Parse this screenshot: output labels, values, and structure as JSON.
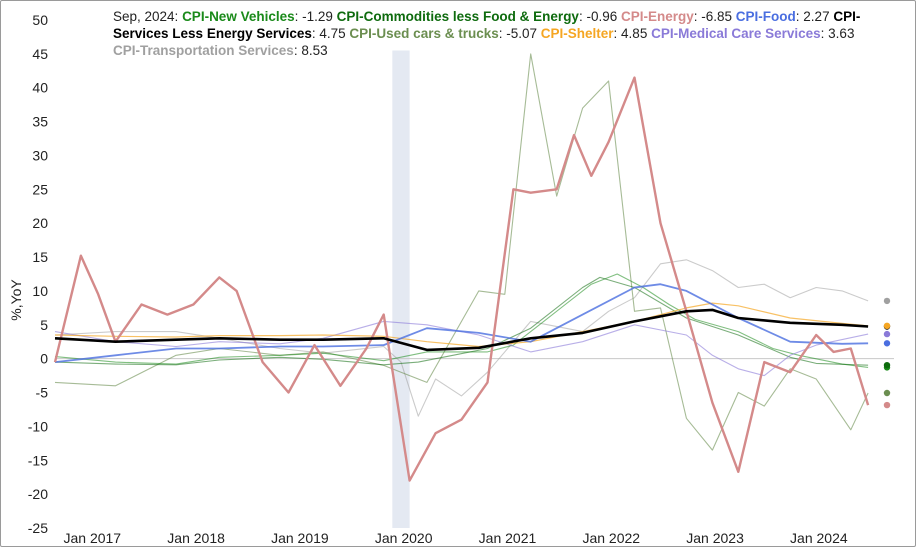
{
  "chart_data": {
    "type": "line",
    "ylabel": "%,YoY",
    "ylim": [
      -25,
      50
    ],
    "yticks": [
      -25,
      -20,
      -15,
      -10,
      -5,
      0,
      5,
      10,
      15,
      20,
      25,
      30,
      35,
      40,
      45,
      50
    ],
    "xlim": [
      "2016-11",
      "2024-12"
    ],
    "xticks": [
      {
        "label": "Jan 2017",
        "date": "2017-01"
      },
      {
        "label": "Jan 2018",
        "date": "2018-01"
      },
      {
        "label": "Jan 2019",
        "date": "2019-01"
      },
      {
        "label": "Jan 2020",
        "date": "2020-01"
      },
      {
        "label": "Jan 2021",
        "date": "2021-01"
      },
      {
        "label": "Jan 2022",
        "date": "2022-01"
      },
      {
        "label": "Jan 2023",
        "date": "2023-01"
      },
      {
        "label": "Jan 2024",
        "date": "2024-01"
      }
    ],
    "recession_band": [
      "2020-02",
      "2020-04"
    ],
    "legend": {
      "date": "Sep, 2024",
      "position": "top"
    },
    "series": [
      {
        "name": "CPI-New Vehicles",
        "color": "#1a8a1a",
        "last": "-1.29",
        "points": [
          [
            "2016-11",
            0.3
          ],
          [
            "2017-06",
            -0.5
          ],
          [
            "2018-01",
            -0.8
          ],
          [
            "2018-06",
            0.2
          ],
          [
            "2019-01",
            0.5
          ],
          [
            "2019-06",
            0.8
          ],
          [
            "2020-01",
            -0.3
          ],
          [
            "2020-06",
            1.0
          ],
          [
            "2021-01",
            1.0
          ],
          [
            "2021-04",
            2.0
          ],
          [
            "2021-07",
            5.0
          ],
          [
            "2021-10",
            8.0
          ],
          [
            "2022-01",
            11.0
          ],
          [
            "2022-04",
            12.5
          ],
          [
            "2022-07",
            10.5
          ],
          [
            "2022-10",
            8.0
          ],
          [
            "2023-01",
            5.8
          ],
          [
            "2023-06",
            4.0
          ],
          [
            "2023-10",
            1.5
          ],
          [
            "2024-01",
            0.5
          ],
          [
            "2024-06",
            -0.8
          ],
          [
            "2024-09",
            -1.29
          ]
        ]
      },
      {
        "name": "CPI-Commodities less Food & Energy",
        "color": "#0e6b0e",
        "last": "-0.96",
        "points": [
          [
            "2016-11",
            -0.5
          ],
          [
            "2017-06",
            -0.8
          ],
          [
            "2018-01",
            -0.9
          ],
          [
            "2018-06",
            -0.2
          ],
          [
            "2019-01",
            0.2
          ],
          [
            "2019-06",
            -0.1
          ],
          [
            "2020-01",
            -0.9
          ],
          [
            "2020-05",
            -0.5
          ],
          [
            "2020-09",
            0.5
          ],
          [
            "2021-01",
            1.5
          ],
          [
            "2021-06",
            4.5
          ],
          [
            "2021-12",
            10.5
          ],
          [
            "2022-02",
            12.0
          ],
          [
            "2022-06",
            10.5
          ],
          [
            "2022-12",
            6.0
          ],
          [
            "2023-06",
            3.5
          ],
          [
            "2023-12",
            0.2
          ],
          [
            "2024-03",
            -0.7
          ],
          [
            "2024-09",
            -0.96
          ]
        ]
      },
      {
        "name": "CPI-Energy",
        "color": "#d48a8a",
        "last": "-6.85",
        "points": [
          [
            "2016-11",
            -0.5
          ],
          [
            "2017-02",
            15.2
          ],
          [
            "2017-04",
            9.5
          ],
          [
            "2017-06",
            2.5
          ],
          [
            "2017-09",
            8.0
          ],
          [
            "2017-12",
            6.5
          ],
          [
            "2018-03",
            8.0
          ],
          [
            "2018-06",
            12.0
          ],
          [
            "2018-08",
            10.0
          ],
          [
            "2018-11",
            -0.5
          ],
          [
            "2019-02",
            -5.0
          ],
          [
            "2019-05",
            2.0
          ],
          [
            "2019-08",
            -4.0
          ],
          [
            "2019-11",
            1.5
          ],
          [
            "2020-01",
            6.5
          ],
          [
            "2020-04",
            -18.0
          ],
          [
            "2020-07",
            -11.0
          ],
          [
            "2020-10",
            -9.0
          ],
          [
            "2021-01",
            -3.5
          ],
          [
            "2021-04",
            25.0
          ],
          [
            "2021-06",
            24.5
          ],
          [
            "2021-09",
            25.0
          ],
          [
            "2021-11",
            33.0
          ],
          [
            "2022-01",
            27.0
          ],
          [
            "2022-03",
            32.0
          ],
          [
            "2022-06",
            41.5
          ],
          [
            "2022-09",
            20.0
          ],
          [
            "2022-12",
            7.0
          ],
          [
            "2023-03",
            -6.5
          ],
          [
            "2023-06",
            -16.7
          ],
          [
            "2023-09",
            -0.5
          ],
          [
            "2023-12",
            -2.0
          ],
          [
            "2024-03",
            3.5
          ],
          [
            "2024-05",
            1.0
          ],
          [
            "2024-07",
            1.5
          ],
          [
            "2024-09",
            -6.85
          ]
        ]
      },
      {
        "name": "CPI-Food",
        "color": "#4a6ee0",
        "last": "2.27",
        "points": [
          [
            "2016-11",
            -0.5
          ],
          [
            "2017-06",
            0.5
          ],
          [
            "2018-01",
            1.5
          ],
          [
            "2018-06",
            1.5
          ],
          [
            "2019-01",
            1.8
          ],
          [
            "2019-06",
            1.8
          ],
          [
            "2020-01",
            2.0
          ],
          [
            "2020-06",
            4.5
          ],
          [
            "2020-12",
            3.8
          ],
          [
            "2021-06",
            2.5
          ],
          [
            "2021-12",
            6.5
          ],
          [
            "2022-06",
            10.5
          ],
          [
            "2022-09",
            11.0
          ],
          [
            "2022-12",
            10.0
          ],
          [
            "2023-06",
            6.0
          ],
          [
            "2023-12",
            2.5
          ],
          [
            "2024-06",
            2.2
          ],
          [
            "2024-09",
            2.27
          ]
        ]
      },
      {
        "name": "CPI-Services Less Energy Services",
        "color": "#000000",
        "last": "4.75",
        "points": [
          [
            "2016-11",
            3.0
          ],
          [
            "2017-06",
            2.5
          ],
          [
            "2018-01",
            2.8
          ],
          [
            "2018-06",
            3.0
          ],
          [
            "2019-01",
            2.8
          ],
          [
            "2019-06",
            2.8
          ],
          [
            "2020-01",
            3.0
          ],
          [
            "2020-06",
            1.3
          ],
          [
            "2020-12",
            1.6
          ],
          [
            "2021-06",
            3.0
          ],
          [
            "2021-12",
            3.8
          ],
          [
            "2022-06",
            5.5
          ],
          [
            "2022-12",
            7.0
          ],
          [
            "2023-03",
            7.2
          ],
          [
            "2023-06",
            6.0
          ],
          [
            "2023-12",
            5.3
          ],
          [
            "2024-06",
            5.0
          ],
          [
            "2024-09",
            4.75
          ]
        ]
      },
      {
        "name": "CPI-Used cars & trucks",
        "color": "#6b8e50",
        "last": "-5.07",
        "points": [
          [
            "2016-11",
            -3.5
          ],
          [
            "2017-06",
            -4.0
          ],
          [
            "2018-01",
            0.5
          ],
          [
            "2018-06",
            1.5
          ],
          [
            "2019-01",
            0.5
          ],
          [
            "2019-06",
            1.0
          ],
          [
            "2020-01",
            -1.0
          ],
          [
            "2020-03",
            -2.0
          ],
          [
            "2020-06",
            -3.5
          ],
          [
            "2020-12",
            10.0
          ],
          [
            "2021-03",
            9.5
          ],
          [
            "2021-06",
            45.0
          ],
          [
            "2021-09",
            24.0
          ],
          [
            "2021-12",
            37.0
          ],
          [
            "2022-03",
            41.0
          ],
          [
            "2022-06",
            7.0
          ],
          [
            "2022-09",
            7.5
          ],
          [
            "2022-12",
            -8.8
          ],
          [
            "2023-03",
            -13.5
          ],
          [
            "2023-06",
            -5.0
          ],
          [
            "2023-09",
            -7.0
          ],
          [
            "2023-12",
            -1.5
          ],
          [
            "2024-03",
            -3.0
          ],
          [
            "2024-07",
            -10.5
          ],
          [
            "2024-09",
            -5.07
          ]
        ]
      },
      {
        "name": "CPI-Shelter",
        "color": "#f5a623",
        "last": "4.85",
        "points": [
          [
            "2016-11",
            3.5
          ],
          [
            "2017-06",
            3.3
          ],
          [
            "2018-01",
            3.2
          ],
          [
            "2018-06",
            3.4
          ],
          [
            "2019-01",
            3.4
          ],
          [
            "2019-06",
            3.5
          ],
          [
            "2020-01",
            3.3
          ],
          [
            "2020-06",
            2.5
          ],
          [
            "2020-12",
            1.8
          ],
          [
            "2021-06",
            2.5
          ],
          [
            "2021-12",
            4.0
          ],
          [
            "2022-06",
            5.5
          ],
          [
            "2022-12",
            7.5
          ],
          [
            "2023-03",
            8.2
          ],
          [
            "2023-06",
            7.8
          ],
          [
            "2023-12",
            6.0
          ],
          [
            "2024-06",
            5.2
          ],
          [
            "2024-09",
            4.85
          ]
        ]
      },
      {
        "name": "CPI-Medical Care Services",
        "color": "#8a7ad8",
        "last": "3.63",
        "points": [
          [
            "2016-11",
            4.0
          ],
          [
            "2017-06",
            2.5
          ],
          [
            "2018-01",
            1.8
          ],
          [
            "2018-06",
            2.5
          ],
          [
            "2019-01",
            2.2
          ],
          [
            "2019-06",
            3.0
          ],
          [
            "2020-01",
            5.5
          ],
          [
            "2020-06",
            5.0
          ],
          [
            "2020-12",
            3.5
          ],
          [
            "2021-06",
            1.0
          ],
          [
            "2021-12",
            2.5
          ],
          [
            "2022-06",
            5.0
          ],
          [
            "2022-12",
            3.5
          ],
          [
            "2023-03",
            0.5
          ],
          [
            "2023-06",
            -1.5
          ],
          [
            "2023-09",
            -2.5
          ],
          [
            "2023-12",
            0.5
          ],
          [
            "2024-03",
            2.0
          ],
          [
            "2024-09",
            3.63
          ]
        ]
      },
      {
        "name": "CPI-Transportation Services",
        "color": "#a0a0a0",
        "last": "8.53",
        "points": [
          [
            "2016-11",
            3.5
          ],
          [
            "2017-06",
            4.0
          ],
          [
            "2018-01",
            4.0
          ],
          [
            "2018-06",
            3.0
          ],
          [
            "2019-01",
            1.5
          ],
          [
            "2019-06",
            0.8
          ],
          [
            "2020-01",
            1.8
          ],
          [
            "2020-03",
            -0.5
          ],
          [
            "2020-05",
            -8.5
          ],
          [
            "2020-07",
            -3.0
          ],
          [
            "2020-10",
            -5.5
          ],
          [
            "2021-01",
            -2.0
          ],
          [
            "2021-06",
            5.5
          ],
          [
            "2021-12",
            4.0
          ],
          [
            "2022-03",
            7.0
          ],
          [
            "2022-06",
            9.0
          ],
          [
            "2022-09",
            14.0
          ],
          [
            "2022-12",
            14.6
          ],
          [
            "2023-03",
            13.0
          ],
          [
            "2023-06",
            10.5
          ],
          [
            "2023-09",
            11.0
          ],
          [
            "2023-12",
            9.0
          ],
          [
            "2024-03",
            10.5
          ],
          [
            "2024-06",
            10.0
          ],
          [
            "2024-09",
            8.53
          ]
        ]
      }
    ]
  }
}
